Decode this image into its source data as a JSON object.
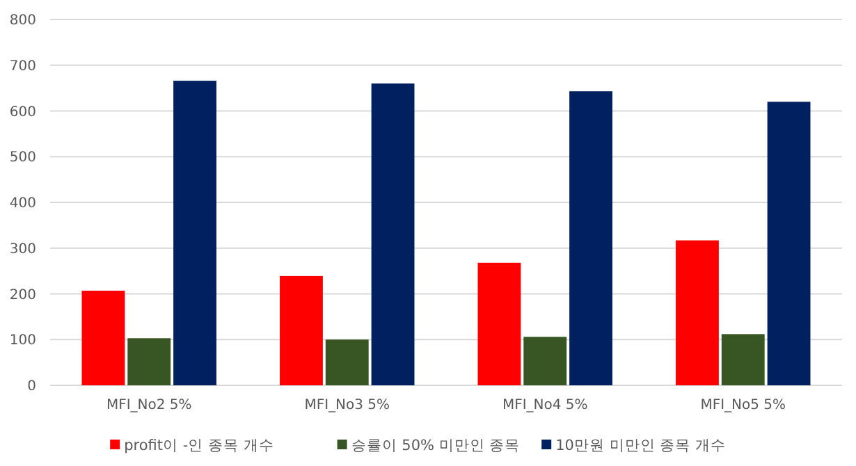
{
  "chart_data": {
    "type": "bar",
    "categories": [
      "MFI_No2 5%",
      "MFI_No3 5%",
      "MFI_No4 5%",
      "MFI_No5 5%"
    ],
    "series": [
      {
        "name": "profit이 -인 종목 개수",
        "color": "#ff0000",
        "values": [
          207,
          239,
          268,
          317
        ]
      },
      {
        "name": "승률이 50% 미만인 종목",
        "color": "#375623",
        "values": [
          103,
          100,
          106,
          112
        ]
      },
      {
        "name": "10만원 미만인 종목 개수",
        "color": "#002060",
        "values": [
          666,
          660,
          643,
          620
        ]
      }
    ],
    "ylim": [
      0,
      800
    ],
    "yticks": [
      0,
      100,
      200,
      300,
      400,
      500,
      600,
      700,
      800
    ],
    "grid": "y",
    "legend": "bottom"
  }
}
